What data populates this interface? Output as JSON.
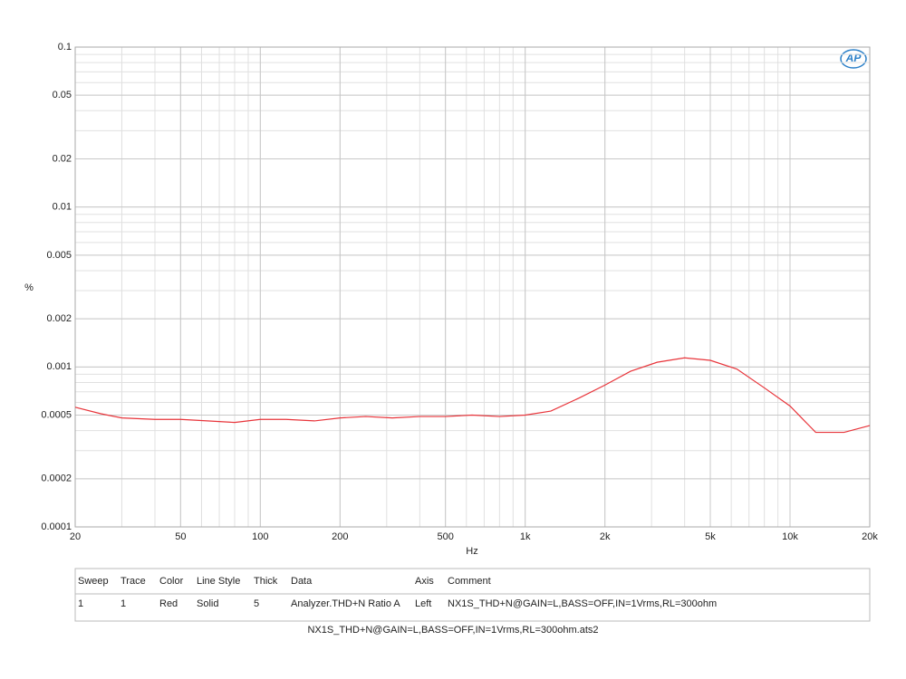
{
  "chart_data": {
    "type": "line",
    "logo": "AP",
    "xlabel": "Hz",
    "ylabel": "%",
    "xscale": "log",
    "yscale": "log",
    "grid": true,
    "minor_grid": true,
    "xlim": [
      20,
      20000
    ],
    "ylim": [
      0.0001,
      0.1
    ],
    "xticks": [
      20,
      50,
      100,
      200,
      500,
      {
        "value": 1000,
        "label": "1k"
      },
      {
        "value": 2000,
        "label": "2k"
      },
      {
        "value": 5000,
        "label": "5k"
      },
      {
        "value": 10000,
        "label": "10k"
      },
      {
        "value": 20000,
        "label": "20k"
      }
    ],
    "yticks": [
      0.1,
      0.05,
      0.02,
      0.01,
      0.005,
      0.002,
      0.001,
      0.0005,
      0.0002,
      0.0001
    ],
    "x": [
      20,
      25,
      30,
      40,
      50,
      63,
      80,
      100,
      125,
      160,
      200,
      250,
      315,
      400,
      500,
      630,
      800,
      1000,
      1250,
      1600,
      2000,
      2500,
      3150,
      4000,
      5000,
      6300,
      8000,
      10000,
      12500,
      16000,
      20000
    ],
    "series": [
      {
        "name": "Analyzer.THD+N Ratio A",
        "color": "#e8343a",
        "values": [
          0.00056,
          0.00051,
          0.00048,
          0.00047,
          0.00047,
          0.00046,
          0.00045,
          0.00047,
          0.00047,
          0.00046,
          0.00048,
          0.00049,
          0.00048,
          0.00049,
          0.00049,
          0.0005,
          0.00049,
          0.0005,
          0.00053,
          0.00064,
          0.00077,
          0.00094,
          0.00107,
          0.00114,
          0.0011,
          0.00097,
          0.00074,
          0.00057,
          0.00039,
          0.00039,
          0.00043
        ]
      }
    ],
    "legend_table": {
      "headers": [
        "Sweep",
        "Trace",
        "Color",
        "Line Style",
        "Thick",
        "Data",
        "Axis",
        "Comment"
      ],
      "rows": [
        [
          "1",
          "1",
          "Red",
          "Solid",
          "5",
          "Analyzer.THD+N Ratio A",
          "Left",
          "NX1S_THD+N@GAIN=L,BASS=OFF,IN=1Vrms,RL=300ohm"
        ]
      ]
    },
    "footer": "NX1S_THD+N@GAIN=L,BASS=OFF,IN=1Vrms,RL=300ohm.ats2"
  }
}
